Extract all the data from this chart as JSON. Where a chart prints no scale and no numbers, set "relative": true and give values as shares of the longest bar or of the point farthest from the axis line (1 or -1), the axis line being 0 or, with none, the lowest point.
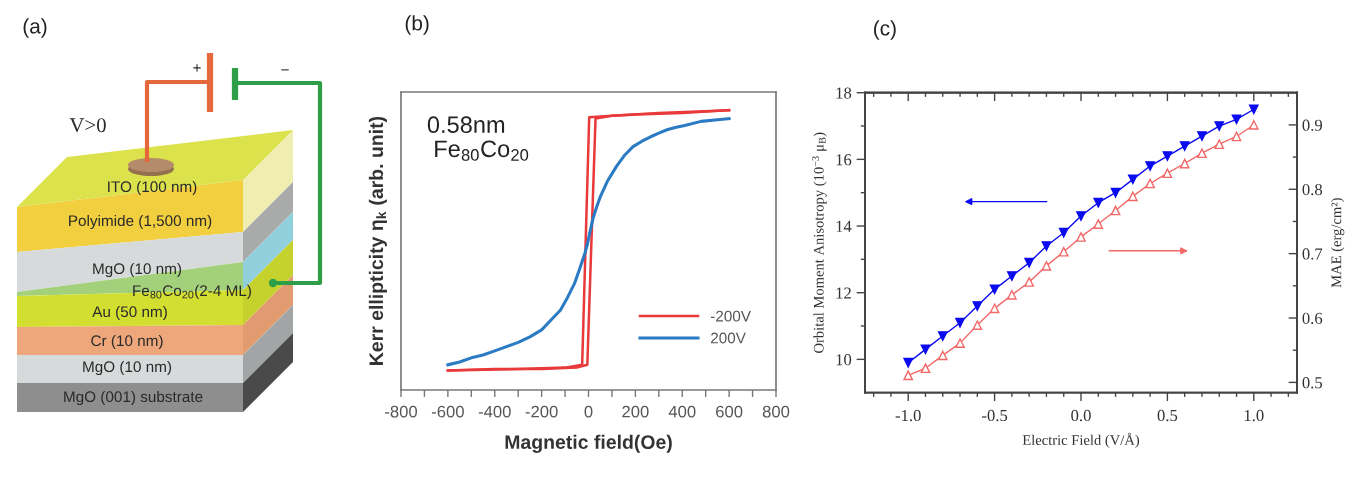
{
  "chart_data": [
    {
      "type": "other",
      "title": "(a)",
      "annotations": [
        "V>0",
        "+",
        "−",
        "ITO (100 nm)",
        "Polyimide (1,500 nm)",
        "MgO (10 nm)",
        "Fe$_{80}$Co$_{20}$(2-4 ML)",
        "Au (50 nm)",
        "Cr (10 nm)",
        "MgO (10 nm)",
        "MgO (001) substrate"
      ]
    },
    {
      "type": "line",
      "title": "(b)",
      "xlabel": "Magnetic field(Oe)",
      "ylabel": "Kerr ellipticity η$_{k}$ (arb. unit)",
      "relative": true,
      "xlim": [
        -800,
        800
      ],
      "xticks": [
        -800,
        {
          "value": -700,
          "label": null
        },
        -600,
        {
          "value": -500,
          "label": null
        },
        -400,
        {
          "value": -300,
          "label": null
        },
        -200,
        {
          "value": -100,
          "label": null
        },
        0,
        {
          "value": 100,
          "label": null
        },
        200,
        {
          "value": 300,
          "label": null
        },
        400,
        {
          "value": 500,
          "label": null
        },
        600,
        {
          "value": 700,
          "label": null
        },
        800
      ],
      "annotations": [
        "0.58nm",
        "Fe$_{80}$Co$_{20}$"
      ],
      "legend": "bottom right",
      "series": [
        {
          "name": "-200V",
          "color": "#e8393b",
          "x": [
            -600,
            -400,
            -200,
            -50,
            -5,
            30,
            100,
            200,
            400,
            600
          ],
          "values": [
            0.07,
            0.075,
            0.075,
            0.08,
            0.09,
            0.97,
            0.98,
            0.985,
            0.99,
            1.0
          ]
        },
        {
          "color": "#e8393b",
          "x": [
            -600,
            -300,
            -100,
            -27,
            3,
            100,
            300,
            600
          ],
          "values": [
            0.07,
            0.075,
            0.08,
            0.09,
            0.975,
            0.98,
            0.99,
            1.0
          ]
        },
        {
          "name": "200V",
          "color": "#2b7bc4",
          "x": [
            -600,
            -550,
            -500,
            -450,
            -400,
            -350,
            -300,
            -250,
            -200,
            -160,
            -120,
            -90,
            -60,
            -35,
            -15,
            -5,
            5,
            20,
            35,
            50,
            80,
            120,
            155,
            190,
            230,
            265,
            300,
            335,
            370,
            410,
            480,
            540,
            600
          ],
          "values": [
            0.09,
            0.1,
            0.115,
            0.125,
            0.14,
            0.155,
            0.17,
            0.19,
            0.215,
            0.25,
            0.285,
            0.33,
            0.38,
            0.44,
            0.49,
            0.52,
            0.56,
            0.615,
            0.655,
            0.69,
            0.745,
            0.8,
            0.84,
            0.87,
            0.89,
            0.905,
            0.918,
            0.93,
            0.938,
            0.945,
            0.96,
            0.965,
            0.97
          ]
        }
      ]
    },
    {
      "type": "line",
      "title": "(c)",
      "xlabel": "Electric Field (V/Å)",
      "ylabel": "Orbital Moment Anisotropy (10$^{−3}$ μ$_{B}$)",
      "y2label": "MAE (erg/cm²)",
      "marker": "triangle",
      "x": [
        -1,
        -0.9,
        -0.8,
        -0.7,
        -0.6,
        -0.5,
        -0.4,
        -0.3,
        -0.2,
        -0.1,
        0,
        0.1,
        0.2,
        0.3,
        0.4,
        0.5,
        0.6,
        0.7,
        0.8,
        0.9,
        1
      ],
      "xlim": [
        -1.25,
        1.25
      ],
      "xticks": [
        {
          "value": -1.2,
          "label": null
        },
        {
          "value": -1.1,
          "label": null
        },
        {
          "value": -1,
          "label": "-1.0"
        },
        {
          "value": -0.9,
          "label": null
        },
        {
          "value": -0.8,
          "label": null
        },
        {
          "value": -0.7,
          "label": null
        },
        {
          "value": -0.6,
          "label": null
        },
        -0.5,
        {
          "value": -0.4,
          "label": null
        },
        {
          "value": -0.3,
          "label": null
        },
        {
          "value": -0.2,
          "label": null
        },
        {
          "value": -0.1,
          "label": null
        },
        {
          "value": 0,
          "label": "0.0"
        },
        {
          "value": 0.1,
          "label": null
        },
        {
          "value": 0.2,
          "label": null
        },
        {
          "value": 0.3,
          "label": null
        },
        {
          "value": 0.4,
          "label": null
        },
        0.5,
        {
          "value": 0.6,
          "label": null
        },
        {
          "value": 0.7,
          "label": null
        },
        {
          "value": 0.8,
          "label": null
        },
        {
          "value": 0.9,
          "label": null
        },
        {
          "value": 1,
          "label": "1.0"
        },
        {
          "value": 1.1,
          "label": null
        },
        {
          "value": 1.2,
          "label": null
        }
      ],
      "ylim": [
        9,
        18
      ],
      "yticks": [
        10,
        {
          "value": 11,
          "label": null
        },
        12,
        {
          "value": 13,
          "label": null
        },
        14,
        {
          "value": 15,
          "label": null
        },
        16,
        {
          "value": 17,
          "label": null
        },
        18
      ],
      "y2lim": [
        0.484,
        0.95
      ],
      "y2ticks": [
        0.5,
        {
          "value": 0.55,
          "label": null
        },
        0.6,
        {
          "value": 0.65,
          "label": null
        },
        0.7,
        {
          "value": 0.75,
          "label": null
        },
        0.8,
        {
          "value": 0.85,
          "label": null
        },
        0.9
      ],
      "series": [
        {
          "color": "#0a0af0",
          "values": [
            9.9,
            10.3,
            10.7,
            11.1,
            11.6,
            12.1,
            12.5,
            12.9,
            13.4,
            13.8,
            14.3,
            14.7,
            15.0,
            15.4,
            15.8,
            16.1,
            16.4,
            16.7,
            17.0,
            17.2,
            17.5
          ]
        },
        {
          "color": "#f26868",
          "axis": "y2",
          "values": [
            0.511,
            0.522,
            0.542,
            0.561,
            0.589,
            0.615,
            0.636,
            0.656,
            0.681,
            0.703,
            0.726,
            0.746,
            0.767,
            0.789,
            0.809,
            0.825,
            0.84,
            0.856,
            0.87,
            0.882,
            0.9
          ]
        }
      ]
    }
  ]
}
